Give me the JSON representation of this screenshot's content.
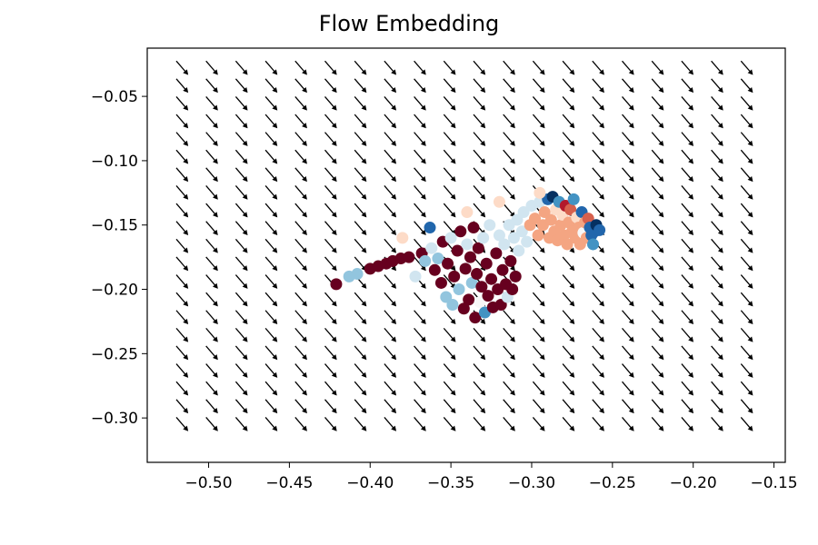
{
  "chart_data": {
    "type": "scatter",
    "title": "Flow Embedding",
    "xlabel": "",
    "ylabel": "",
    "xlim": [
      -0.538,
      -0.143
    ],
    "ylim": [
      -0.3345,
      -0.0125
    ],
    "xticks": [
      -0.5,
      -0.45,
      -0.4,
      -0.35,
      -0.3,
      -0.25,
      -0.2,
      -0.15
    ],
    "xtick_labels": [
      "−0.50",
      "−0.45",
      "−0.40",
      "−0.35",
      "−0.30",
      "−0.25",
      "−0.20",
      "−0.15"
    ],
    "yticks": [
      -0.05,
      -0.1,
      -0.15,
      -0.2,
      -0.25,
      -0.3
    ],
    "ytick_labels": [
      "−0.05",
      "−0.10",
      "−0.15",
      "−0.20",
      "−0.25",
      "−0.30"
    ],
    "grid": false,
    "legend": "none",
    "colormap": "RdBu",
    "quiver": {
      "x_start": -0.52,
      "x_step": 0.0184,
      "x_count": 20,
      "y_start": -0.0225,
      "y_step": -0.01385,
      "y_count": 21,
      "direction": [
        0.0074,
        -0.0108
      ],
      "color": "#000000"
    },
    "points": [
      {
        "x": -0.421,
        "y": -0.196,
        "c": "#67001f"
      },
      {
        "x": -0.413,
        "y": -0.19,
        "c": "#92c5de"
      },
      {
        "x": -0.408,
        "y": -0.188,
        "c": "#92c5de"
      },
      {
        "x": -0.4,
        "y": -0.184,
        "c": "#67001f"
      },
      {
        "x": -0.395,
        "y": -0.182,
        "c": "#67001f"
      },
      {
        "x": -0.39,
        "y": -0.18,
        "c": "#67001f"
      },
      {
        "x": -0.386,
        "y": -0.178,
        "c": "#67001f"
      },
      {
        "x": -0.381,
        "y": -0.176,
        "c": "#67001f"
      },
      {
        "x": -0.376,
        "y": -0.175,
        "c": "#67001f"
      },
      {
        "x": -0.372,
        "y": -0.19,
        "c": "#d1e5f0"
      },
      {
        "x": -0.368,
        "y": -0.172,
        "c": "#67001f"
      },
      {
        "x": -0.366,
        "y": -0.178,
        "c": "#92c5de"
      },
      {
        "x": -0.363,
        "y": -0.152,
        "c": "#2166ac"
      },
      {
        "x": -0.362,
        "y": -0.168,
        "c": "#d1e5f0"
      },
      {
        "x": -0.36,
        "y": -0.185,
        "c": "#67001f"
      },
      {
        "x": -0.358,
        "y": -0.176,
        "c": "#92c5de"
      },
      {
        "x": -0.356,
        "y": -0.195,
        "c": "#67001f"
      },
      {
        "x": -0.355,
        "y": -0.163,
        "c": "#67001f"
      },
      {
        "x": -0.353,
        "y": -0.206,
        "c": "#92c5de"
      },
      {
        "x": -0.352,
        "y": -0.18,
        "c": "#67001f"
      },
      {
        "x": -0.35,
        "y": -0.16,
        "c": "#d1e5f0"
      },
      {
        "x": -0.349,
        "y": -0.212,
        "c": "#92c5de"
      },
      {
        "x": -0.348,
        "y": -0.19,
        "c": "#67001f"
      },
      {
        "x": -0.346,
        "y": -0.17,
        "c": "#67001f"
      },
      {
        "x": -0.345,
        "y": -0.2,
        "c": "#92c5de"
      },
      {
        "x": -0.344,
        "y": -0.155,
        "c": "#67001f"
      },
      {
        "x": -0.342,
        "y": -0.215,
        "c": "#67001f"
      },
      {
        "x": -0.341,
        "y": -0.184,
        "c": "#67001f"
      },
      {
        "x": -0.34,
        "y": -0.165,
        "c": "#d1e5f0"
      },
      {
        "x": -0.339,
        "y": -0.208,
        "c": "#67001f"
      },
      {
        "x": -0.338,
        "y": -0.175,
        "c": "#67001f"
      },
      {
        "x": -0.337,
        "y": -0.195,
        "c": "#92c5de"
      },
      {
        "x": -0.336,
        "y": -0.152,
        "c": "#67001f"
      },
      {
        "x": -0.335,
        "y": -0.222,
        "c": "#67001f"
      },
      {
        "x": -0.334,
        "y": -0.188,
        "c": "#67001f"
      },
      {
        "x": -0.333,
        "y": -0.168,
        "c": "#67001f"
      },
      {
        "x": -0.332,
        "y": -0.21,
        "c": "#f7f7f7"
      },
      {
        "x": -0.331,
        "y": -0.198,
        "c": "#67001f"
      },
      {
        "x": -0.33,
        "y": -0.16,
        "c": "#d1e5f0"
      },
      {
        "x": -0.329,
        "y": -0.218,
        "c": "#4393c3"
      },
      {
        "x": -0.328,
        "y": -0.18,
        "c": "#67001f"
      },
      {
        "x": -0.327,
        "y": -0.205,
        "c": "#67001f"
      },
      {
        "x": -0.326,
        "y": -0.15,
        "c": "#d1e5f0"
      },
      {
        "x": -0.325,
        "y": -0.192,
        "c": "#67001f"
      },
      {
        "x": -0.324,
        "y": -0.214,
        "c": "#67001f"
      },
      {
        "x": -0.322,
        "y": -0.172,
        "c": "#67001f"
      },
      {
        "x": -0.321,
        "y": -0.2,
        "c": "#67001f"
      },
      {
        "x": -0.32,
        "y": -0.158,
        "c": "#d1e5f0"
      },
      {
        "x": -0.319,
        "y": -0.212,
        "c": "#67001f"
      },
      {
        "x": -0.318,
        "y": -0.185,
        "c": "#67001f"
      },
      {
        "x": -0.317,
        "y": -0.165,
        "c": "#d1e5f0"
      },
      {
        "x": -0.316,
        "y": -0.196,
        "c": "#67001f"
      },
      {
        "x": -0.315,
        "y": -0.206,
        "c": "#d1e5f0"
      },
      {
        "x": -0.314,
        "y": -0.15,
        "c": "#d1e5f0"
      },
      {
        "x": -0.313,
        "y": -0.178,
        "c": "#67001f"
      },
      {
        "x": -0.312,
        "y": -0.2,
        "c": "#67001f"
      },
      {
        "x": -0.311,
        "y": -0.16,
        "c": "#d1e5f0"
      },
      {
        "x": -0.31,
        "y": -0.19,
        "c": "#67001f"
      },
      {
        "x": -0.309,
        "y": -0.146,
        "c": "#d1e5f0"
      },
      {
        "x": -0.308,
        "y": -0.17,
        "c": "#d1e5f0"
      },
      {
        "x": -0.306,
        "y": -0.155,
        "c": "#d1e5f0"
      },
      {
        "x": -0.305,
        "y": -0.14,
        "c": "#d1e5f0"
      },
      {
        "x": -0.303,
        "y": -0.163,
        "c": "#d1e5f0"
      },
      {
        "x": -0.301,
        "y": -0.15,
        "c": "#f4a582"
      },
      {
        "x": -0.3,
        "y": -0.135,
        "c": "#d1e5f0"
      },
      {
        "x": -0.298,
        "y": -0.145,
        "c": "#f4a582"
      },
      {
        "x": -0.296,
        "y": -0.158,
        "c": "#f4a582"
      },
      {
        "x": -0.295,
        "y": -0.132,
        "c": "#d1e5f0"
      },
      {
        "x": -0.293,
        "y": -0.15,
        "c": "#f4a582"
      },
      {
        "x": -0.292,
        "y": -0.14,
        "c": "#f4a582"
      },
      {
        "x": -0.29,
        "y": -0.13,
        "c": "#2166ac"
      },
      {
        "x": -0.289,
        "y": -0.16,
        "c": "#f4a582"
      },
      {
        "x": -0.288,
        "y": -0.146,
        "c": "#f4a582"
      },
      {
        "x": -0.287,
        "y": -0.128,
        "c": "#053061"
      },
      {
        "x": -0.286,
        "y": -0.155,
        "c": "#f4a582"
      },
      {
        "x": -0.285,
        "y": -0.138,
        "c": "#fddbc7"
      },
      {
        "x": -0.284,
        "y": -0.162,
        "c": "#f4a582"
      },
      {
        "x": -0.283,
        "y": -0.132,
        "c": "#4393c3"
      },
      {
        "x": -0.282,
        "y": -0.15,
        "c": "#f4a582"
      },
      {
        "x": -0.281,
        "y": -0.142,
        "c": "#fddbc7"
      },
      {
        "x": -0.28,
        "y": -0.158,
        "c": "#f4a582"
      },
      {
        "x": -0.279,
        "y": -0.135,
        "c": "#b2182b"
      },
      {
        "x": -0.278,
        "y": -0.165,
        "c": "#f4a582"
      },
      {
        "x": -0.277,
        "y": -0.148,
        "c": "#f4a582"
      },
      {
        "x": -0.276,
        "y": -0.138,
        "c": "#d6604d"
      },
      {
        "x": -0.275,
        "y": -0.155,
        "c": "#f4a582"
      },
      {
        "x": -0.274,
        "y": -0.13,
        "c": "#4393c3"
      },
      {
        "x": -0.273,
        "y": -0.16,
        "c": "#f4a582"
      },
      {
        "x": -0.272,
        "y": -0.144,
        "c": "#fddbc7"
      },
      {
        "x": -0.271,
        "y": -0.152,
        "c": "#f4a582"
      },
      {
        "x": -0.27,
        "y": -0.165,
        "c": "#f4a582"
      },
      {
        "x": -0.269,
        "y": -0.14,
        "c": "#2166ac"
      },
      {
        "x": -0.268,
        "y": -0.156,
        "c": "#f7f7f7"
      },
      {
        "x": -0.267,
        "y": -0.148,
        "c": "#f4a582"
      },
      {
        "x": -0.266,
        "y": -0.16,
        "c": "#f4a582"
      },
      {
        "x": -0.265,
        "y": -0.145,
        "c": "#d6604d"
      },
      {
        "x": -0.264,
        "y": -0.152,
        "c": "#2166ac"
      },
      {
        "x": -0.263,
        "y": -0.158,
        "c": "#2166ac"
      },
      {
        "x": -0.262,
        "y": -0.165,
        "c": "#4393c3"
      },
      {
        "x": -0.261,
        "y": -0.155,
        "c": "#2166ac"
      },
      {
        "x": -0.26,
        "y": -0.15,
        "c": "#053061"
      },
      {
        "x": -0.258,
        "y": -0.154,
        "c": "#2166ac"
      },
      {
        "x": -0.295,
        "y": -0.125,
        "c": "#fddbc7"
      },
      {
        "x": -0.34,
        "y": -0.14,
        "c": "#fddbc7"
      },
      {
        "x": -0.32,
        "y": -0.132,
        "c": "#fddbc7"
      },
      {
        "x": -0.38,
        "y": -0.16,
        "c": "#fddbc7"
      }
    ]
  }
}
